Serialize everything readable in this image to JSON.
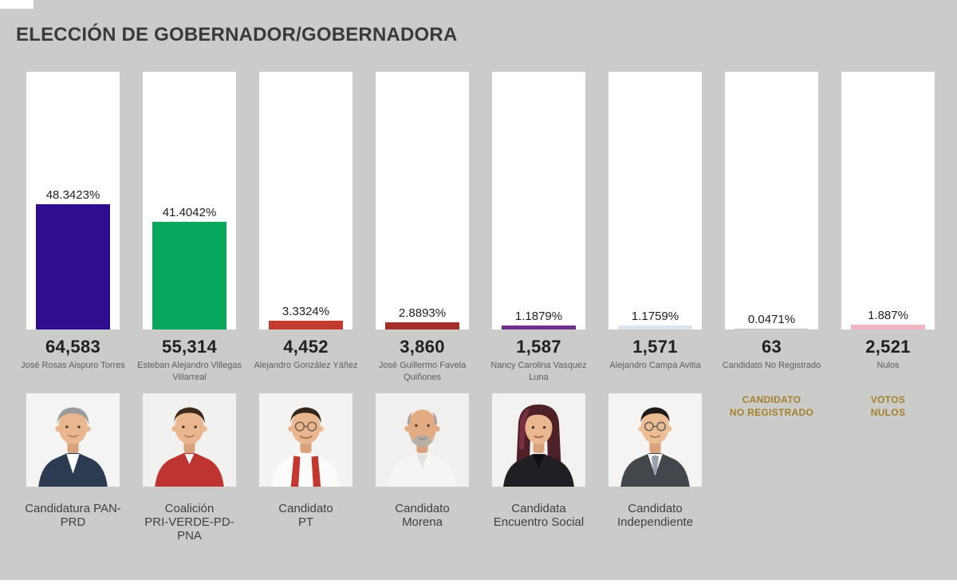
{
  "page": {
    "title": "ELECCIÓN DE GOBERNADOR/GOBERNADORA",
    "background_color": "#cbcbc9",
    "accent_gold": "#a57f2a"
  },
  "chart_data": {
    "type": "bar",
    "title": "ELECCIÓN DE GOBERNADOR/GOBERNADORA",
    "categories": [
      "José Rosas Aispuro Torres",
      "Esteban Alejandro Villegas Villarreal",
      "Alejandro González Yáñez",
      "José Guillermo Favela Quiñones",
      "Nancy Carolina Vasquez Luna",
      "Alejandro Campa Avitia",
      "Candidato No Registrado",
      "Nulos"
    ],
    "values_percent": [
      48.3423,
      41.4042,
      3.3324,
      2.8893,
      1.1879,
      1.1759,
      0.0471,
      1.887
    ],
    "values_votes": [
      64583,
      55314,
      4452,
      3860,
      1587,
      1571,
      63,
      2521
    ],
    "bar_colors": [
      "#2e0d8e",
      "#09a75d",
      "#c23b2c",
      "#a52f28",
      "#702f8a",
      "#dae4ee",
      "#bfbfbf",
      "#f0b4c2"
    ],
    "xlabel": "",
    "ylabel": "",
    "ylim": [
      0,
      100
    ],
    "grid": false,
    "legend": false
  },
  "columns": [
    {
      "percent_label": "48.3423%",
      "percent": 48.3423,
      "color": "#2e0d8e",
      "votes": "64,583",
      "name": "José Rosas Aispuro Torres",
      "party": "Candidatura PAN-\nPRD"
    },
    {
      "percent_label": "41.4042%",
      "percent": 41.4042,
      "color": "#09a75d",
      "votes": "55,314",
      "name": "Esteban Alejandro Villegas\nVillarreal",
      "party": "Coalición\nPRI-VERDE-PD-\nPNA"
    },
    {
      "percent_label": "3.3324%",
      "percent": 3.3324,
      "color": "#c23b2c",
      "votes": "4,452",
      "name": "Alejandro González Yáñez",
      "party": "Candidato\nPT"
    },
    {
      "percent_label": "2.8893%",
      "percent": 2.8893,
      "color": "#a52f28",
      "votes": "3,860",
      "name": "José Guillermo Favela\nQuiñones",
      "party": "Candidato\nMorena"
    },
    {
      "percent_label": "1.1879%",
      "percent": 1.1879,
      "color": "#702f8a",
      "votes": "1,587",
      "name": "Nancy Carolina Vasquez\nLuna",
      "party": "Candidata\nEncuentro Social"
    },
    {
      "percent_label": "1.1759%",
      "percent": 1.1759,
      "color": "#dae4ee",
      "votes": "1,571",
      "name": "Alejandro Campa Avitia",
      "party": "Candidato\nIndependiente"
    },
    {
      "percent_label": "0.0471%",
      "percent": 0.0471,
      "color": "#bfbfbf",
      "votes": "63",
      "name": "Candidato No Registrado",
      "note": "CANDIDATO\nNO REGISTRADO"
    },
    {
      "percent_label": "1.887%",
      "percent": 1.887,
      "color": "#f0b4c2",
      "votes": "2,521",
      "name": "Nulos",
      "note": "VOTOS\nNULOS"
    }
  ]
}
